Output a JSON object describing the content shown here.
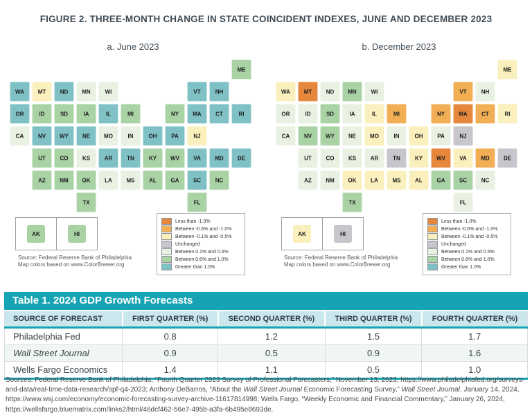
{
  "figure": {
    "title": "FIGURE 2. THREE-MONTH CHANGE IN STATE COINCIDENT INDEXES, JUNE AND DECEMBER 2023",
    "panels": [
      {
        "label": "a. June 2023",
        "map_key": "june",
        "source_line1": "Source: Federal Reserve Bank of Philadelphia",
        "source_line2": "Map colors based on www.ColorBrewer.org"
      },
      {
        "label": "b. December 2023",
        "map_key": "dec",
        "source_line1": "Source: Federal Reserve Bank of Philadelphia",
        "source_line2": "Map colors based on www.ColorBrewer.org"
      }
    ],
    "legend_items": [
      {
        "label": "Less than -1.0%",
        "color": "#E5873C"
      },
      {
        "label": "Between -0.6% and -1.0%",
        "color": "#F2AE55"
      },
      {
        "label": "Between -0.1% and -0.5%",
        "color": "#FAF0BD"
      },
      {
        "label": "Unchanged",
        "color": "#C6C6CC"
      },
      {
        "label": "Between 0.1% and 0.5%",
        "color": "#E8F1E2"
      },
      {
        "label": "Between 0.6% and 1.0%",
        "color": "#A9D2A5"
      },
      {
        "label": "Greater than 1.0%",
        "color": "#7FC1C5"
      }
    ],
    "states": [
      {
        "abbr": "ME",
        "row": 0,
        "col": 10,
        "june": 6,
        "dec": 3
      },
      {
        "abbr": "WA",
        "row": 1,
        "col": 0,
        "june": 7,
        "dec": 3
      },
      {
        "abbr": "MT",
        "row": 1,
        "col": 1,
        "june": 3,
        "dec": 1
      },
      {
        "abbr": "ND",
        "row": 1,
        "col": 2,
        "june": 7,
        "dec": 5
      },
      {
        "abbr": "MN",
        "row": 1,
        "col": 3,
        "june": 5,
        "dec": 6
      },
      {
        "abbr": "WI",
        "row": 1,
        "col": 4,
        "june": 5,
        "dec": 5
      },
      {
        "abbr": "VT",
        "row": 1,
        "col": 8,
        "june": 7,
        "dec": 2
      },
      {
        "abbr": "NH",
        "row": 1,
        "col": 9,
        "june": 7,
        "dec": 5
      },
      {
        "abbr": "OR",
        "row": 2,
        "col": 0,
        "june": 7,
        "dec": 5
      },
      {
        "abbr": "ID",
        "row": 2,
        "col": 1,
        "june": 6,
        "dec": 5
      },
      {
        "abbr": "SD",
        "row": 2,
        "col": 2,
        "june": 6,
        "dec": 6
      },
      {
        "abbr": "IA",
        "row": 2,
        "col": 3,
        "june": 6,
        "dec": 5
      },
      {
        "abbr": "IL",
        "row": 2,
        "col": 4,
        "june": 7,
        "dec": 3
      },
      {
        "abbr": "MI",
        "row": 2,
        "col": 5,
        "june": 6,
        "dec": 2
      },
      {
        "abbr": "NY",
        "row": 2,
        "col": 7,
        "june": 6,
        "dec": 2
      },
      {
        "abbr": "MA",
        "row": 2,
        "col": 8,
        "june": 7,
        "dec": 1
      },
      {
        "abbr": "CT",
        "row": 2,
        "col": 9,
        "june": 7,
        "dec": 2
      },
      {
        "abbr": "RI",
        "row": 2,
        "col": 10,
        "june": 7,
        "dec": 3
      },
      {
        "abbr": "CA",
        "row": 3,
        "col": 0,
        "june": 5,
        "dec": 5
      },
      {
        "abbr": "NV",
        "row": 3,
        "col": 1,
        "june": 7,
        "dec": 6
      },
      {
        "abbr": "WY",
        "row": 3,
        "col": 2,
        "june": 7,
        "dec": 6
      },
      {
        "abbr": "NE",
        "row": 3,
        "col": 3,
        "june": 7,
        "dec": 5
      },
      {
        "abbr": "MO",
        "row": 3,
        "col": 4,
        "june": 5,
        "dec": 3
      },
      {
        "abbr": "IN",
        "row": 3,
        "col": 5,
        "june": 5,
        "dec": 5
      },
      {
        "abbr": "OH",
        "row": 3,
        "col": 6,
        "june": 7,
        "dec": 3
      },
      {
        "abbr": "PA",
        "row": 3,
        "col": 7,
        "june": 7,
        "dec": 5
      },
      {
        "abbr": "NJ",
        "row": 3,
        "col": 8,
        "june": 3,
        "dec": 4
      },
      {
        "abbr": "UT",
        "row": 4,
        "col": 1,
        "june": 6,
        "dec": 5
      },
      {
        "abbr": "CO",
        "row": 4,
        "col": 2,
        "june": 6,
        "dec": 5
      },
      {
        "abbr": "KS",
        "row": 4,
        "col": 3,
        "june": 5,
        "dec": 5
      },
      {
        "abbr": "AR",
        "row": 4,
        "col": 4,
        "june": 7,
        "dec": 5
      },
      {
        "abbr": "TN",
        "row": 4,
        "col": 5,
        "june": 7,
        "dec": 4
      },
      {
        "abbr": "KY",
        "row": 4,
        "col": 6,
        "june": 6,
        "dec": 3
      },
      {
        "abbr": "WV",
        "row": 4,
        "col": 7,
        "june": 6,
        "dec": 1
      },
      {
        "abbr": "VA",
        "row": 4,
        "col": 8,
        "june": 7,
        "dec": 3
      },
      {
        "abbr": "MD",
        "row": 4,
        "col": 9,
        "june": 7,
        "dec": 2
      },
      {
        "abbr": "DE",
        "row": 4,
        "col": 10,
        "june": 7,
        "dec": 4
      },
      {
        "abbr": "AZ",
        "row": 5,
        "col": 1,
        "june": 6,
        "dec": 5
      },
      {
        "abbr": "NM",
        "row": 5,
        "col": 2,
        "june": 6,
        "dec": 5
      },
      {
        "abbr": "OK",
        "row": 5,
        "col": 3,
        "june": 6,
        "dec": 3
      },
      {
        "abbr": "LA",
        "row": 5,
        "col": 4,
        "june": 5,
        "dec": 3
      },
      {
        "abbr": "MS",
        "row": 5,
        "col": 5,
        "june": 5,
        "dec": 3
      },
      {
        "abbr": "AL",
        "row": 5,
        "col": 6,
        "june": 6,
        "dec": 3
      },
      {
        "abbr": "GA",
        "row": 5,
        "col": 7,
        "june": 6,
        "dec": 6
      },
      {
        "abbr": "SC",
        "row": 5,
        "col": 8,
        "june": 7,
        "dec": 6
      },
      {
        "abbr": "NC",
        "row": 5,
        "col": 9,
        "june": 6,
        "dec": 5
      },
      {
        "abbr": "TX",
        "row": 6,
        "col": 3,
        "june": 6,
        "dec": 6
      },
      {
        "abbr": "FL",
        "row": 6,
        "col": 8,
        "june": 6,
        "dec": 5
      },
      {
        "abbr": "AK",
        "inset": true,
        "june": 6,
        "dec": 3
      },
      {
        "abbr": "HI",
        "inset": true,
        "june": 6,
        "dec": 4
      }
    ]
  },
  "table": {
    "title": "Table 1. 2024 GDP Growth Forecasts",
    "title_bar_color": "#16A3B3",
    "header_bg_color": "#CBE7EE",
    "columns": [
      "SOURCE OF FORECAST",
      "FIRST QUARTER (%)",
      "SECOND QUARTER (%)",
      "THIRD QUARTER (%)",
      "FOURTH QUARTER (%)"
    ],
    "rows": [
      {
        "source": "Philadelphia Fed",
        "italic": false,
        "values": [
          "0.8",
          "1.2",
          "1.5",
          "1.7"
        ]
      },
      {
        "source": "Wall Street Journal",
        "italic": true,
        "values": [
          "0.9",
          "0.5",
          "0.9",
          "1.6"
        ]
      },
      {
        "source": "Wells Fargo Economics",
        "italic": false,
        "values": [
          "1.4",
          "1.1",
          "0.5",
          "1.0"
        ]
      }
    ]
  },
  "sources_note": {
    "segments": [
      {
        "text": "Sources: Federal Reserve Bank of Philadelphia, “Fourth Quarter 2023 Survey of Professional Forecasters,” November 13, 2023, https://www.philadelphiafed.org/surveys-and-data/real-time-data-research/spf-q4-2023; Anthony DeBarros, “About the ",
        "italic": false
      },
      {
        "text": "Wall Street Journal",
        "italic": true
      },
      {
        "text": " Economic Forecasting Survey,” ",
        "italic": false
      },
      {
        "text": "Wall Street Journal",
        "italic": true
      },
      {
        "text": ", January 14, 2024, https://www.wsj.com/economy/economic-forecasting-survey-archive-11617814998; Wells Fargo, “Weekly Economic and Financial Commentary,” January 26, 2024, https://wellsfargo.bluematrix.com/links2/html/46dcf462-56e7-495b-a3fa-6b495e8693de.",
        "italic": false
      }
    ]
  }
}
